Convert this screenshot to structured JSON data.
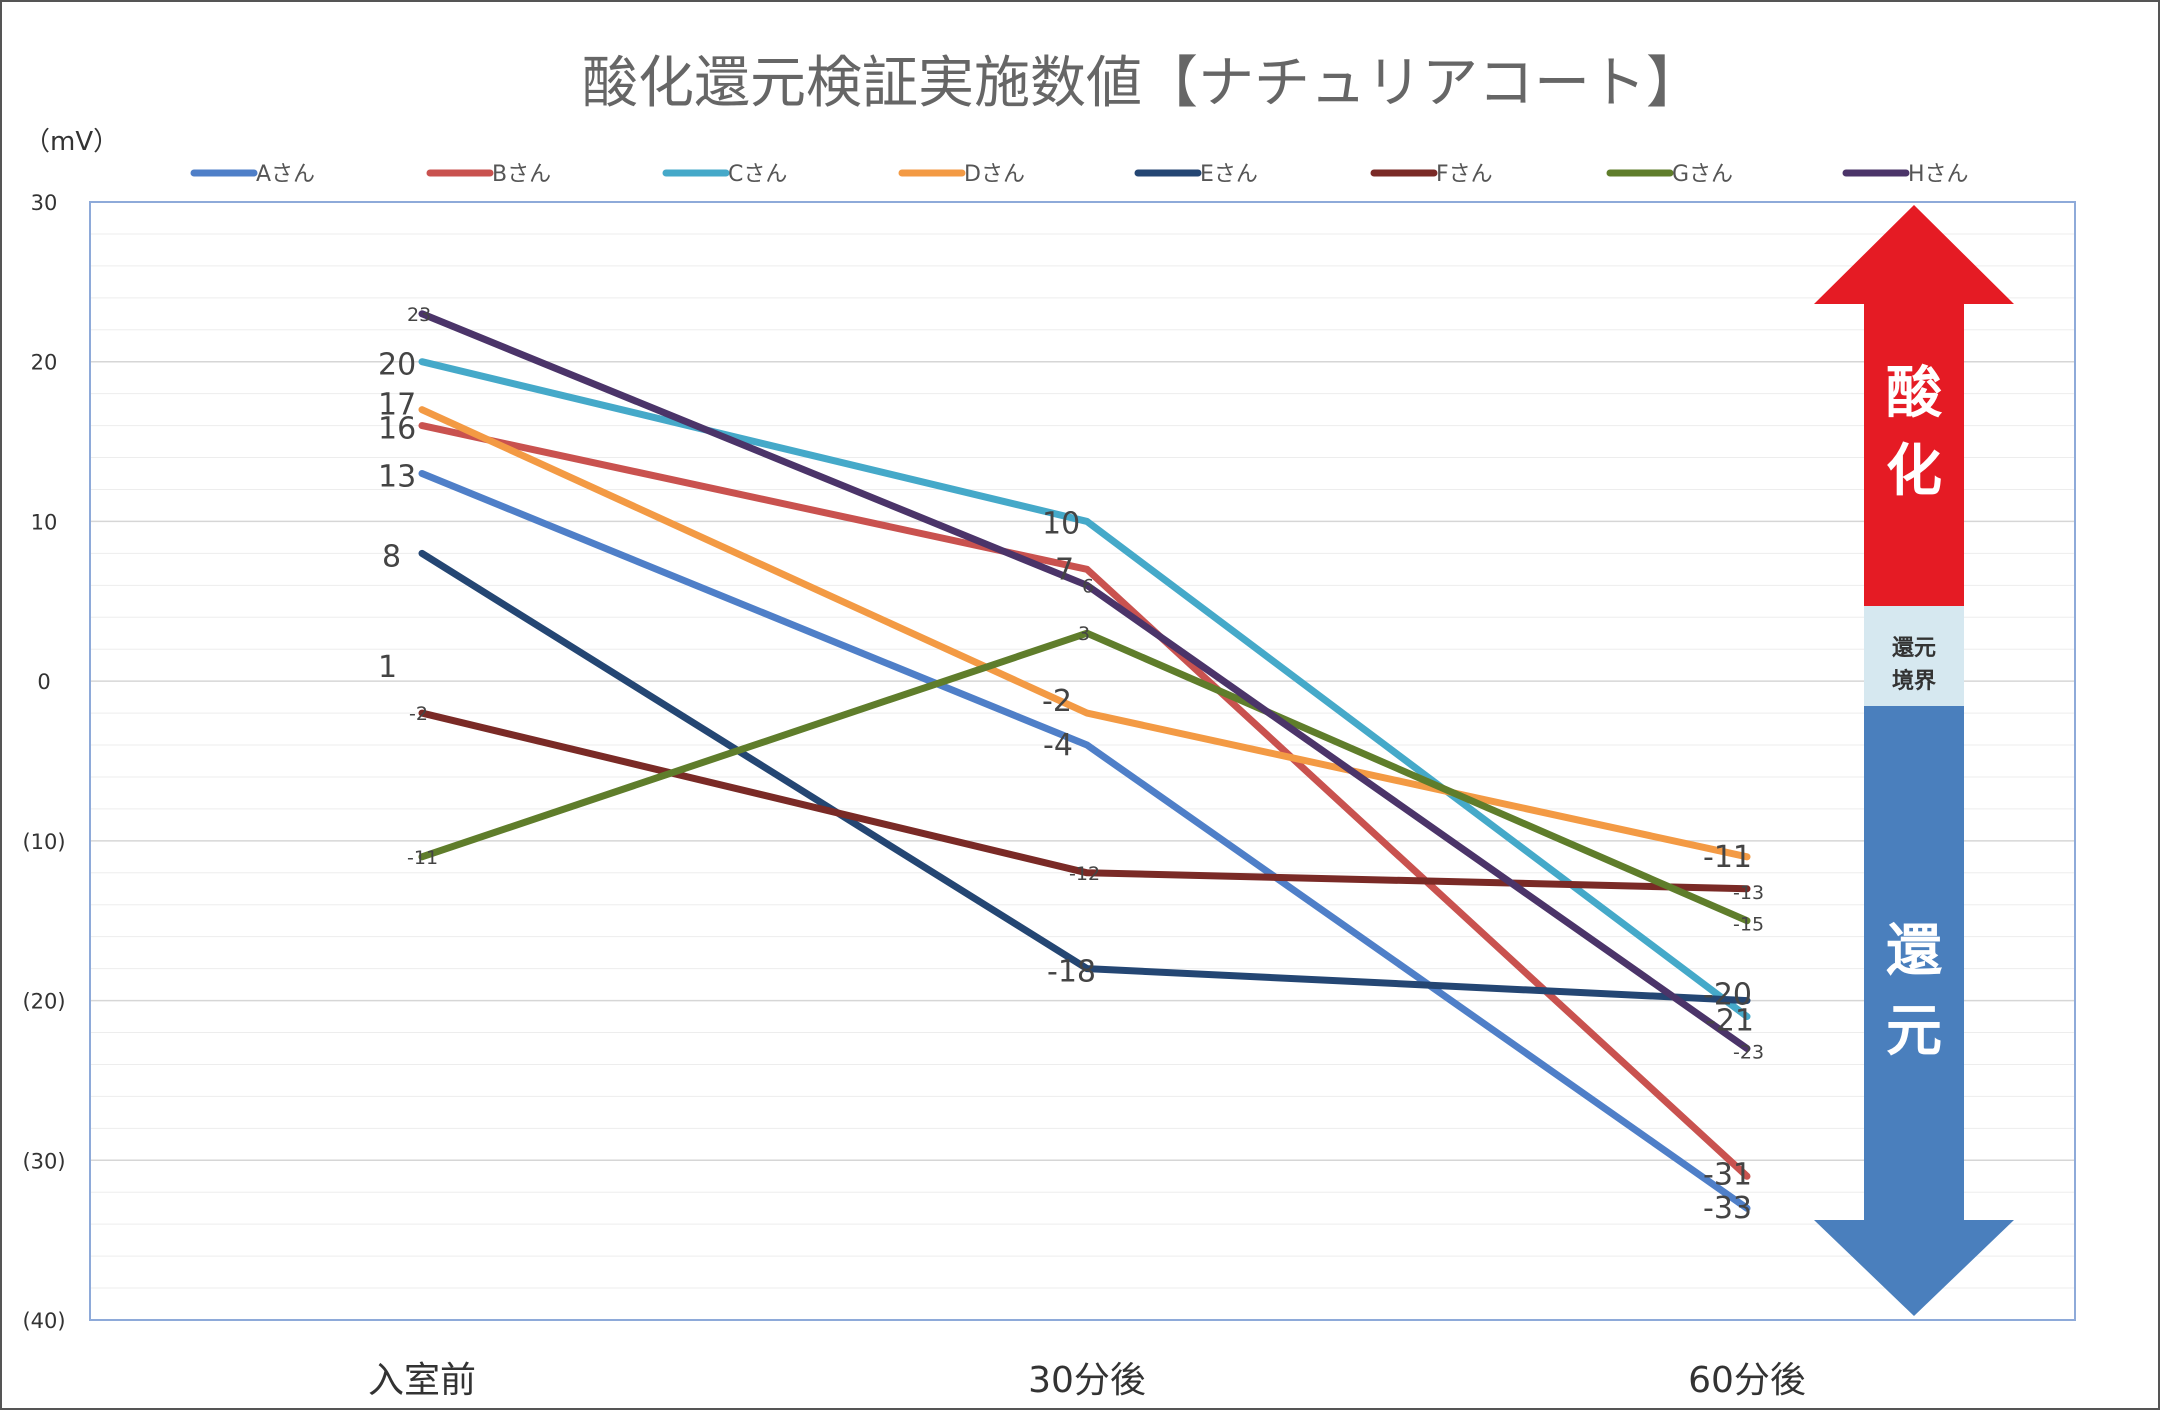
{
  "chart_data": {
    "type": "line",
    "title": "酸化還元検証実施数値【ナチュリアコート】",
    "ylabel": "（mV）",
    "xlabel": "",
    "categories": [
      "入室前",
      "30分後",
      "60分後"
    ],
    "ylim": [
      -40,
      30
    ],
    "yticks": [
      30,
      20,
      10,
      0,
      -10,
      -20,
      -30,
      -40
    ],
    "ytick_labels": [
      "30",
      "20",
      "10",
      "0",
      "(10)",
      "(20)",
      "(30)",
      "(40)"
    ],
    "grid": true,
    "legend_position": "top",
    "series": [
      {
        "name": "Aさん",
        "color": "#4f7fc8",
        "values": [
          13,
          -4,
          -33
        ],
        "labels": [
          "13",
          "-4",
          "-33"
        ]
      },
      {
        "name": "Bさん",
        "color": "#c9524f",
        "values": [
          16,
          7,
          -31
        ],
        "labels": [
          "16",
          "7",
          "-31"
        ]
      },
      {
        "name": "Cさん",
        "color": "#45a9c9",
        "values": [
          20,
          10,
          -21
        ],
        "labels": [
          "20",
          "10",
          "-21"
        ]
      },
      {
        "name": "Dさん",
        "color": "#f39a44",
        "values": [
          17,
          -2,
          -11
        ],
        "labels": [
          "17",
          "-2",
          "-11"
        ]
      },
      {
        "name": "Eさん",
        "color": "#244673",
        "values": [
          8,
          -18,
          -20
        ],
        "labels": [
          "8",
          "-18",
          "-20"
        ]
      },
      {
        "name": "Fさん",
        "color": "#7a2a26",
        "values": [
          -2,
          -12,
          -13
        ],
        "labels": [
          "-2",
          "-12",
          "-13"
        ]
      },
      {
        "name": "Gさん",
        "color": "#5f7d2b",
        "values": [
          -11,
          3,
          -15
        ],
        "labels": [
          "-11",
          "3",
          "-15"
        ]
      },
      {
        "name": "Hさん",
        "color": "#4b3469",
        "values": [
          23,
          6,
          -23
        ],
        "labels": [
          "23",
          "6",
          "-23"
        ]
      }
    ],
    "extra_labels": [
      {
        "text": "1"
      }
    ],
    "annotations": {
      "oxidation": {
        "text": "酸化",
        "color": "#e51b24"
      },
      "boundary": {
        "line1": "還元",
        "line2": "境界",
        "color": "#d6e8f0"
      },
      "reduction": {
        "text": "還元",
        "color": "#4a7fbd"
      }
    }
  }
}
